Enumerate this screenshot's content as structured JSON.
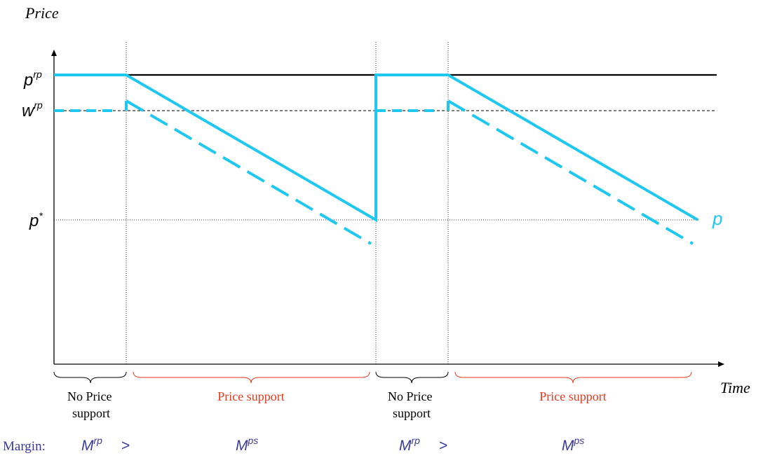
{
  "axis": {
    "y_label": "Price",
    "x_label": "Time"
  },
  "levels": {
    "p_rp": {
      "base": "p",
      "sup": "rp"
    },
    "w_rp": {
      "base": "w",
      "sup": "rp"
    },
    "p_star": {
      "base": "p",
      "sup": "*"
    }
  },
  "series_label": "p",
  "phases": [
    {
      "label_line1": "No Price",
      "label_line2": "support",
      "kind": "no-support"
    },
    {
      "label_line1": "Price support",
      "label_line2": "",
      "kind": "support"
    },
    {
      "label_line1": "No Price",
      "label_line2": "support",
      "kind": "no-support"
    },
    {
      "label_line1": "Price support",
      "label_line2": "",
      "kind": "support"
    }
  ],
  "margin": {
    "label": "Margin:",
    "items": [
      {
        "base": "M",
        "sup": "rp",
        "op": ">"
      },
      {
        "base": "M",
        "sup": "ps",
        "op": ""
      },
      {
        "base": "M",
        "sup": "rp",
        "op": ">"
      },
      {
        "base": "M",
        "sup": "ps",
        "op": ""
      }
    ]
  },
  "colors": {
    "price_line": "#1ec8f0",
    "support_brace": "#e8391c",
    "margin_text": "#3a3a9a",
    "axis": "#000000"
  }
}
